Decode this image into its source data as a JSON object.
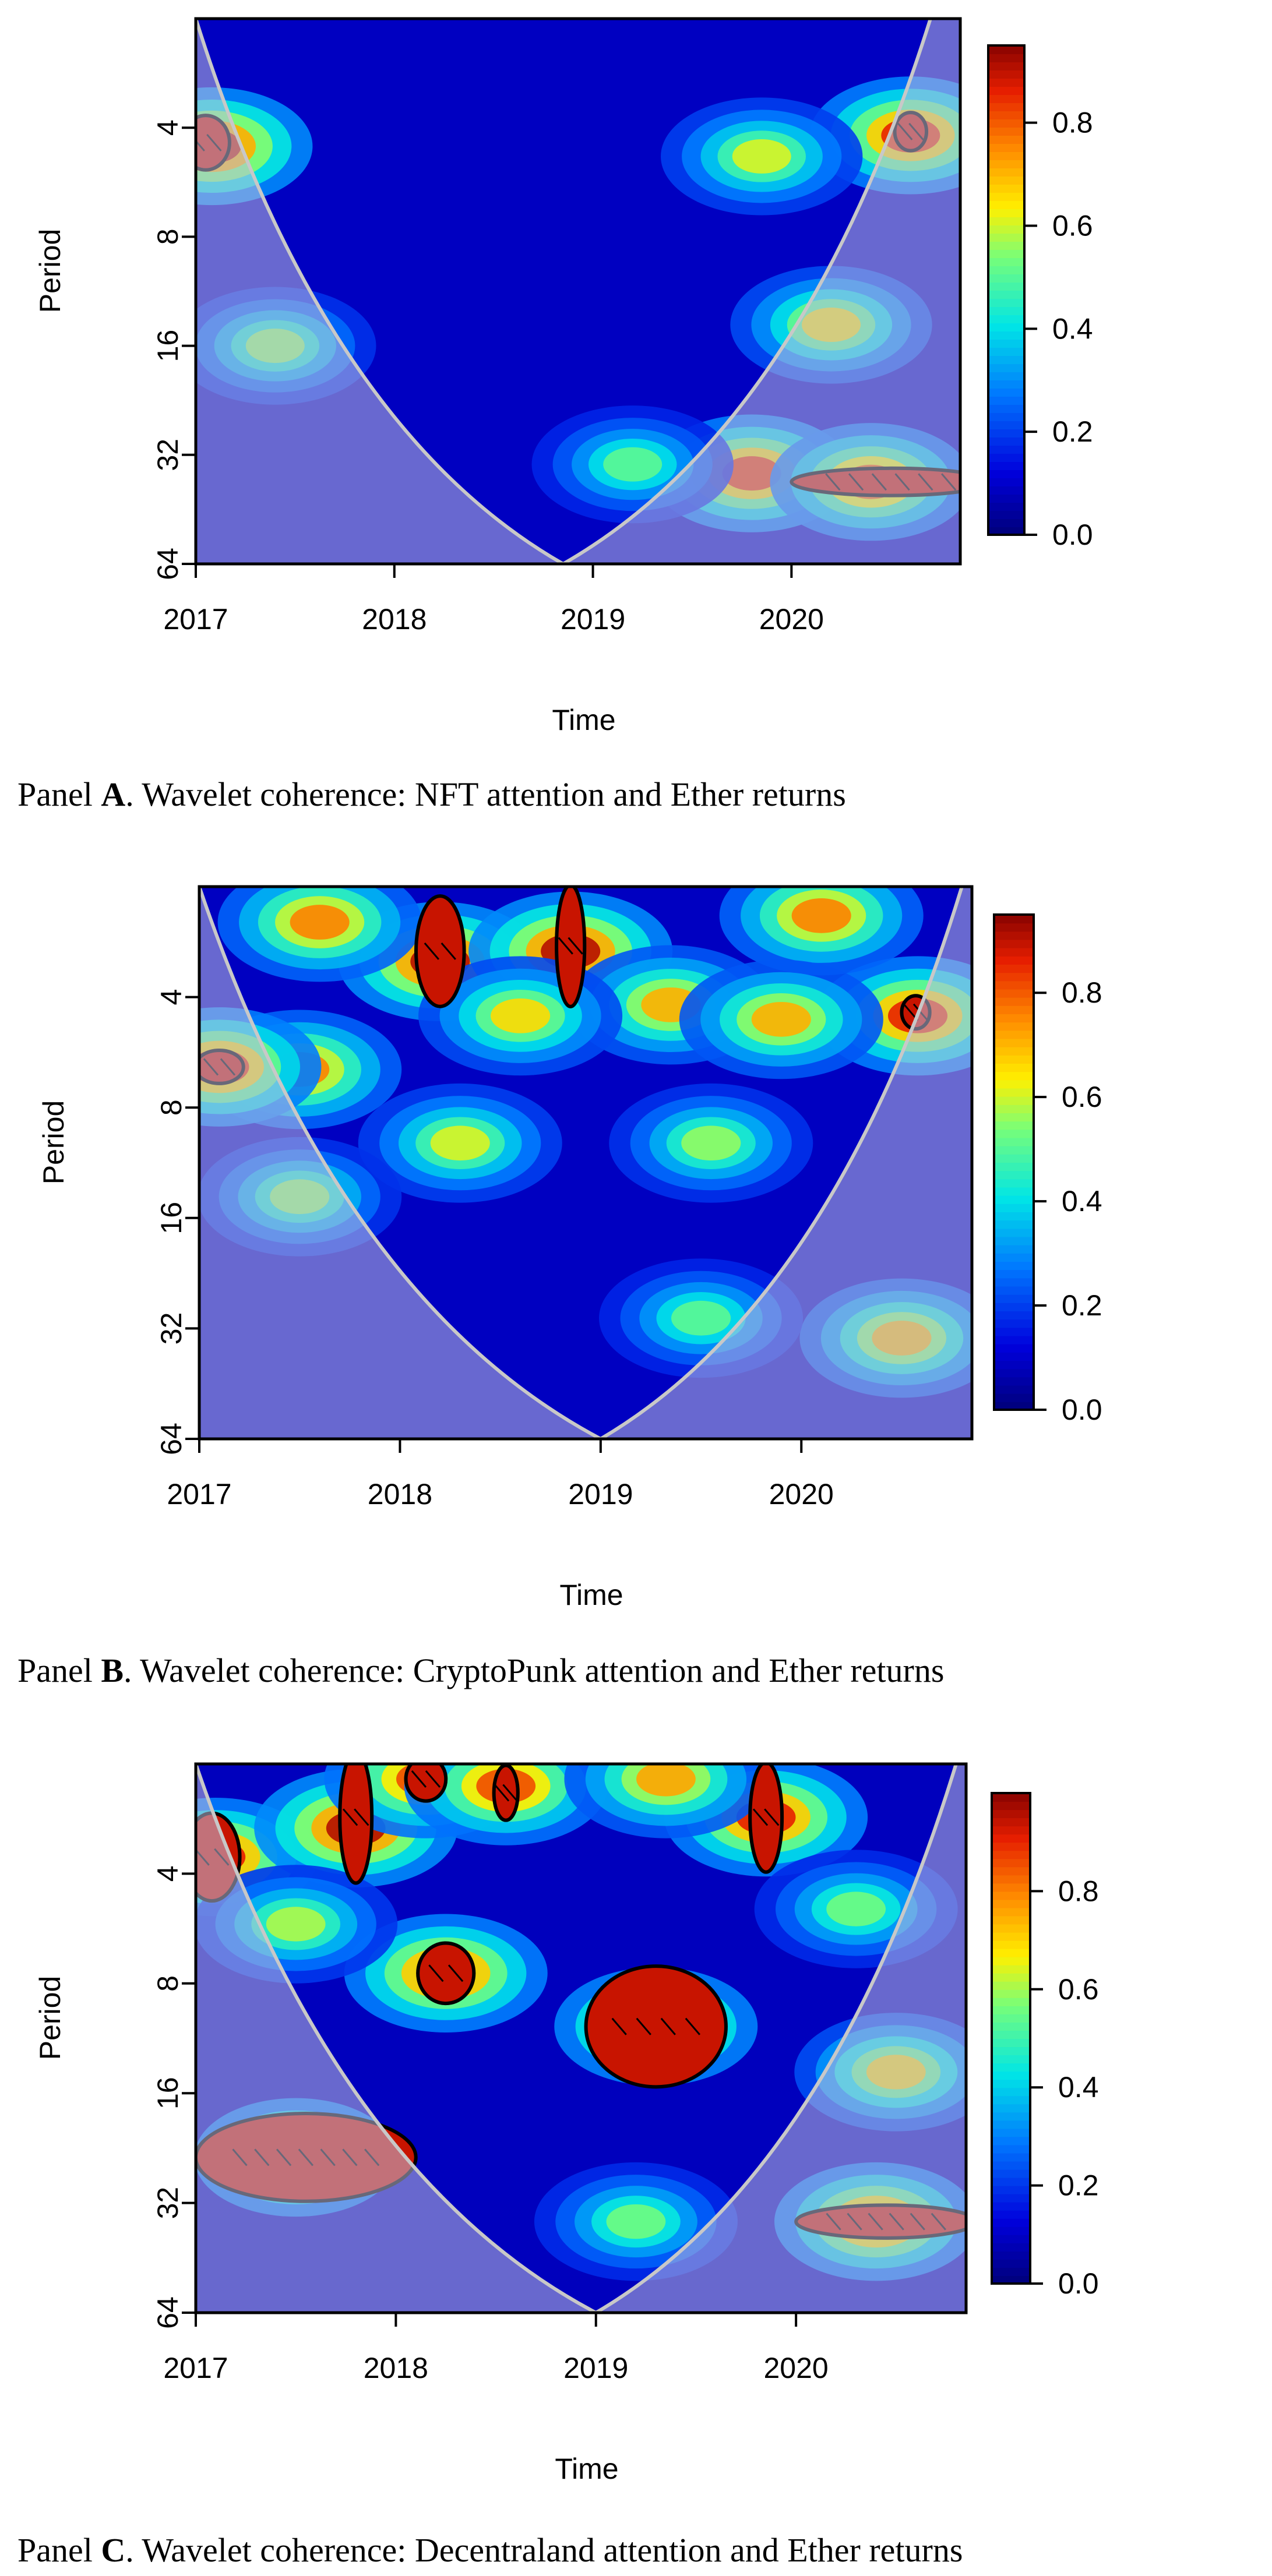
{
  "chart_data": [
    {
      "type": "heatmap",
      "panel": "A",
      "caption": {
        "label": "Panel",
        "letter": "A",
        "text": ". Wavelet coherence: NFT attention and Ether returns"
      },
      "xlabel": "Time",
      "ylabel": "Period",
      "x_ticks": [
        "2017",
        "2018",
        "2019",
        "2020"
      ],
      "x_tick_values": [
        2017,
        2018,
        2019,
        2020
      ],
      "xlim": [
        2017,
        2020.85
      ],
      "y_ticks": [
        "4",
        "8",
        "16",
        "32",
        "64"
      ],
      "y_tick_values": [
        4,
        8,
        16,
        32,
        64
      ],
      "ylim": [
        2,
        64
      ],
      "y_scale": "log2",
      "colorbar": {
        "range": [
          0,
          0.95
        ],
        "ticks": [
          "0.0",
          "0.2",
          "0.4",
          "0.6",
          "0.8"
        ],
        "tick_values": [
          0,
          0.2,
          0.4,
          0.6,
          0.8
        ]
      },
      "cone_of_influence": {
        "left_x": 2017,
        "bottom_x": 2018.85,
        "right_x": 2020.7,
        "bottom_period": 64
      },
      "significant_regions": [
        {
          "time_center": 2017.05,
          "period_center": 4.4,
          "time_halfwidth": 0.12,
          "period_span_octaves": 0.5
        },
        {
          "time_center": 2020.6,
          "period_center": 4.1,
          "time_halfwidth": 0.08,
          "period_span_octaves": 0.35
        },
        {
          "time_center": 2020.5,
          "period_center": 38,
          "time_halfwidth": 0.5,
          "period_span_octaves": 0.25
        }
      ],
      "regions": [
        {
          "time": 2017.08,
          "period": 4.5,
          "coherence": 0.9
        },
        {
          "time": 2020.6,
          "period": 4.2,
          "coherence": 0.85
        },
        {
          "time": 2019.85,
          "period": 4.8,
          "coherence": 0.6
        },
        {
          "time": 2020.2,
          "period": 14,
          "coherence": 0.65
        },
        {
          "time": 2019.8,
          "period": 36,
          "coherence": 0.85
        },
        {
          "time": 2020.4,
          "period": 38,
          "coherence": 0.8
        },
        {
          "time": 2019.2,
          "period": 34,
          "coherence": 0.5
        },
        {
          "time": 2017.4,
          "period": 16,
          "coherence": 0.55
        }
      ]
    },
    {
      "type": "heatmap",
      "panel": "B",
      "caption": {
        "label": "Panel",
        "letter": "B",
        "text": ". Wavelet coherence: CryptoPunk attention and Ether returns"
      },
      "xlabel": "Time",
      "ylabel": "Period",
      "x_ticks": [
        "2017",
        "2018",
        "2019",
        "2020"
      ],
      "x_tick_values": [
        2017,
        2018,
        2019,
        2020
      ],
      "xlim": [
        2017,
        2020.85
      ],
      "y_ticks": [
        "4",
        "8",
        "16",
        "32",
        "64"
      ],
      "y_tick_values": [
        4,
        8,
        16,
        32,
        64
      ],
      "ylim": [
        2,
        64
      ],
      "y_scale": "log2",
      "colorbar": {
        "range": [
          0,
          0.95
        ],
        "ticks": [
          "0.0",
          "0.2",
          "0.4",
          "0.6",
          "0.8"
        ],
        "tick_values": [
          0,
          0.2,
          0.4,
          0.6,
          0.8
        ]
      },
      "cone_of_influence": {
        "left_x": 2017,
        "bottom_x": 2019.0,
        "right_x": 2020.8,
        "bottom_period": 64
      },
      "significant_regions": [
        {
          "time_center": 2018.2,
          "period_center": 3.0,
          "time_halfwidth": 0.12,
          "period_span_octaves": 1.0
        },
        {
          "time_center": 2018.85,
          "period_center": 2.9,
          "time_halfwidth": 0.07,
          "period_span_octaves": 1.1
        },
        {
          "time_center": 2017.1,
          "period_center": 6.2,
          "time_halfwidth": 0.12,
          "period_span_octaves": 0.3
        },
        {
          "time_center": 2020.57,
          "period_center": 4.4,
          "time_halfwidth": 0.07,
          "period_span_octaves": 0.3
        }
      ],
      "regions": [
        {
          "time": 2018.2,
          "period": 3.2,
          "coherence": 0.9
        },
        {
          "time": 2018.85,
          "period": 3.0,
          "coherence": 0.9
        },
        {
          "time": 2017.6,
          "period": 2.5,
          "coherence": 0.75
        },
        {
          "time": 2017.5,
          "period": 6.3,
          "coherence": 0.75
        },
        {
          "time": 2017.1,
          "period": 6.2,
          "coherence": 0.85
        },
        {
          "time": 2020.58,
          "period": 4.5,
          "coherence": 0.85
        },
        {
          "time": 2019.35,
          "period": 4.2,
          "coherence": 0.7
        },
        {
          "time": 2018.6,
          "period": 4.5,
          "coherence": 0.65
        },
        {
          "time": 2020.1,
          "period": 2.4,
          "coherence": 0.75
        },
        {
          "time": 2019.9,
          "period": 4.6,
          "coherence": 0.7
        },
        {
          "time": 2018.3,
          "period": 10,
          "coherence": 0.6
        },
        {
          "time": 2019.55,
          "period": 10,
          "coherence": 0.55
        },
        {
          "time": 2017.5,
          "period": 14,
          "coherence": 0.55
        },
        {
          "time": 2020.5,
          "period": 34,
          "coherence": 0.7
        },
        {
          "time": 2019.5,
          "period": 30,
          "coherence": 0.5
        }
      ]
    },
    {
      "type": "heatmap",
      "panel": "C",
      "caption": {
        "label": "Panel",
        "letter": "C",
        "text": ". Wavelet coherence: Decentraland attention and Ether returns"
      },
      "xlabel": "Time",
      "ylabel": "Period",
      "x_ticks": [
        "2017",
        "2018",
        "2019",
        "2020"
      ],
      "x_tick_values": [
        2017,
        2018,
        2019,
        2020
      ],
      "xlim": [
        2017,
        2020.85
      ],
      "y_ticks": [
        "4",
        "8",
        "16",
        "32",
        "64"
      ],
      "y_tick_values": [
        4,
        8,
        16,
        32,
        64
      ],
      "ylim": [
        2,
        64
      ],
      "y_scale": "log2",
      "colorbar": {
        "range": [
          0,
          1.0
        ],
        "ticks": [
          "0.0",
          "0.2",
          "0.4",
          "0.6",
          "0.8"
        ],
        "tick_values": [
          0,
          0.2,
          0.4,
          0.6,
          0.8
        ]
      },
      "cone_of_influence": {
        "left_x": 2017,
        "bottom_x": 2019.0,
        "right_x": 2020.8,
        "bottom_period": 64
      },
      "significant_regions": [
        {
          "time_center": 2017.08,
          "period_center": 3.6,
          "time_halfwidth": 0.14,
          "period_span_octaves": 0.8
        },
        {
          "time_center": 2017.8,
          "period_center": 2.8,
          "time_halfwidth": 0.08,
          "period_span_octaves": 1.2
        },
        {
          "time_center": 2018.15,
          "period_center": 2.2,
          "time_halfwidth": 0.1,
          "period_span_octaves": 0.4
        },
        {
          "time_center": 2018.55,
          "period_center": 2.4,
          "time_halfwidth": 0.06,
          "period_span_octaves": 0.5
        },
        {
          "time_center": 2019.85,
          "period_center": 2.8,
          "time_halfwidth": 0.08,
          "period_span_octaves": 1.0
        },
        {
          "time_center": 2018.25,
          "period_center": 7.5,
          "time_halfwidth": 0.14,
          "period_span_octaves": 0.55
        },
        {
          "time_center": 2019.3,
          "period_center": 10.5,
          "time_halfwidth": 0.35,
          "period_span_octaves": 1.1
        },
        {
          "time_center": 2017.55,
          "period_center": 24,
          "time_halfwidth": 0.55,
          "period_span_octaves": 0.8
        },
        {
          "time_center": 2020.45,
          "period_center": 36,
          "time_halfwidth": 0.45,
          "period_span_octaves": 0.3
        }
      ],
      "regions": [
        {
          "time": 2017.1,
          "period": 3.6,
          "coherence": 0.9
        },
        {
          "time": 2017.8,
          "period": 3.0,
          "coherence": 0.95
        },
        {
          "time": 2018.15,
          "period": 2.2,
          "coherence": 0.85
        },
        {
          "time": 2018.55,
          "period": 2.3,
          "coherence": 0.85
        },
        {
          "time": 2019.85,
          "period": 2.8,
          "coherence": 0.9
        },
        {
          "time": 2019.35,
          "period": 2.2,
          "coherence": 0.75
        },
        {
          "time": 2018.25,
          "period": 7.5,
          "coherence": 0.9
        },
        {
          "time": 2019.3,
          "period": 10.5,
          "coherence": 0.92
        },
        {
          "time": 2017.5,
          "period": 24,
          "coherence": 0.9
        },
        {
          "time": 2020.4,
          "period": 36,
          "coherence": 0.88
        },
        {
          "time": 2020.5,
          "period": 14,
          "coherence": 0.7
        },
        {
          "time": 2019.2,
          "period": 36,
          "coherence": 0.55
        },
        {
          "time": 2017.5,
          "period": 5.5,
          "coherence": 0.6
        },
        {
          "time": 2020.3,
          "period": 5,
          "coherence": 0.55
        }
      ]
    }
  ]
}
